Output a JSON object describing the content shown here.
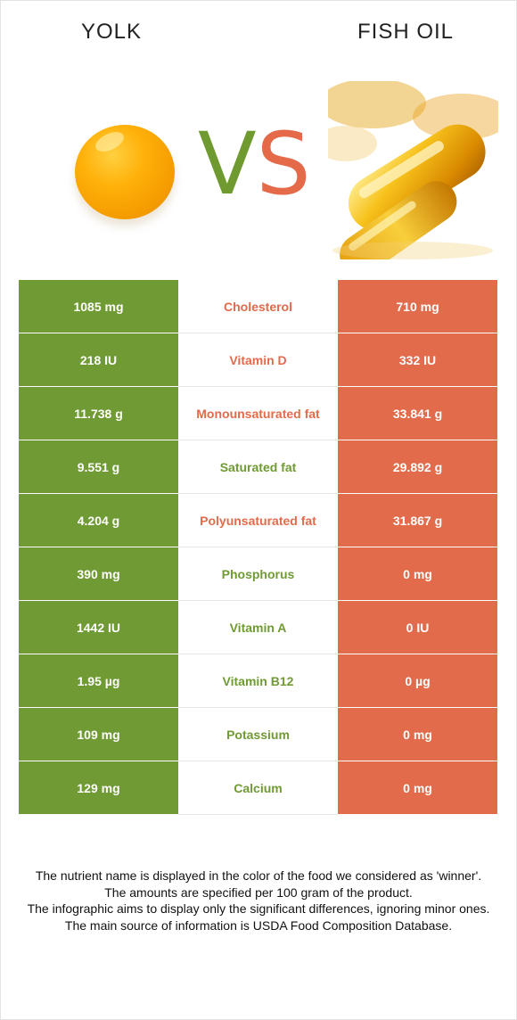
{
  "foods": {
    "left": {
      "name": "YOLK",
      "color": "#709a33"
    },
    "right": {
      "name": "FISH OIL",
      "color": "#e26b4b"
    }
  },
  "vs": {
    "v": "V",
    "s": "S"
  },
  "rows": [
    {
      "nutrient": "Cholesterol",
      "left": "1085 mg",
      "right": "710 mg",
      "winner": "right"
    },
    {
      "nutrient": "Vitamin D",
      "left": "218 IU",
      "right": "332 IU",
      "winner": "right"
    },
    {
      "nutrient": "Monounsaturated fat",
      "left": "11.738 g",
      "right": "33.841 g",
      "winner": "right"
    },
    {
      "nutrient": "Saturated fat",
      "left": "9.551 g",
      "right": "29.892 g",
      "winner": "left"
    },
    {
      "nutrient": "Polyunsaturated fat",
      "left": "4.204 g",
      "right": "31.867 g",
      "winner": "right"
    },
    {
      "nutrient": "Phosphorus",
      "left": "390 mg",
      "right": "0 mg",
      "winner": "left"
    },
    {
      "nutrient": "Vitamin A",
      "left": "1442 IU",
      "right": "0 IU",
      "winner": "left"
    },
    {
      "nutrient": "Vitamin B12",
      "left": "1.95 µg",
      "right": "0 µg",
      "winner": "left"
    },
    {
      "nutrient": "Potassium",
      "left": "109 mg",
      "right": "0 mg",
      "winner": "left"
    },
    {
      "nutrient": "Calcium",
      "left": "129 mg",
      "right": "0 mg",
      "winner": "left"
    }
  ],
  "footnote": {
    "line1": "The nutrient name is displayed in the color of the food we considered as 'winner'.",
    "line2": "The amounts are specified per 100 gram of the product.",
    "line3": "The infographic aims to display only the significant differences, ignoring minor ones.",
    "line4": "The main source of information is USDA Food Composition Database."
  }
}
